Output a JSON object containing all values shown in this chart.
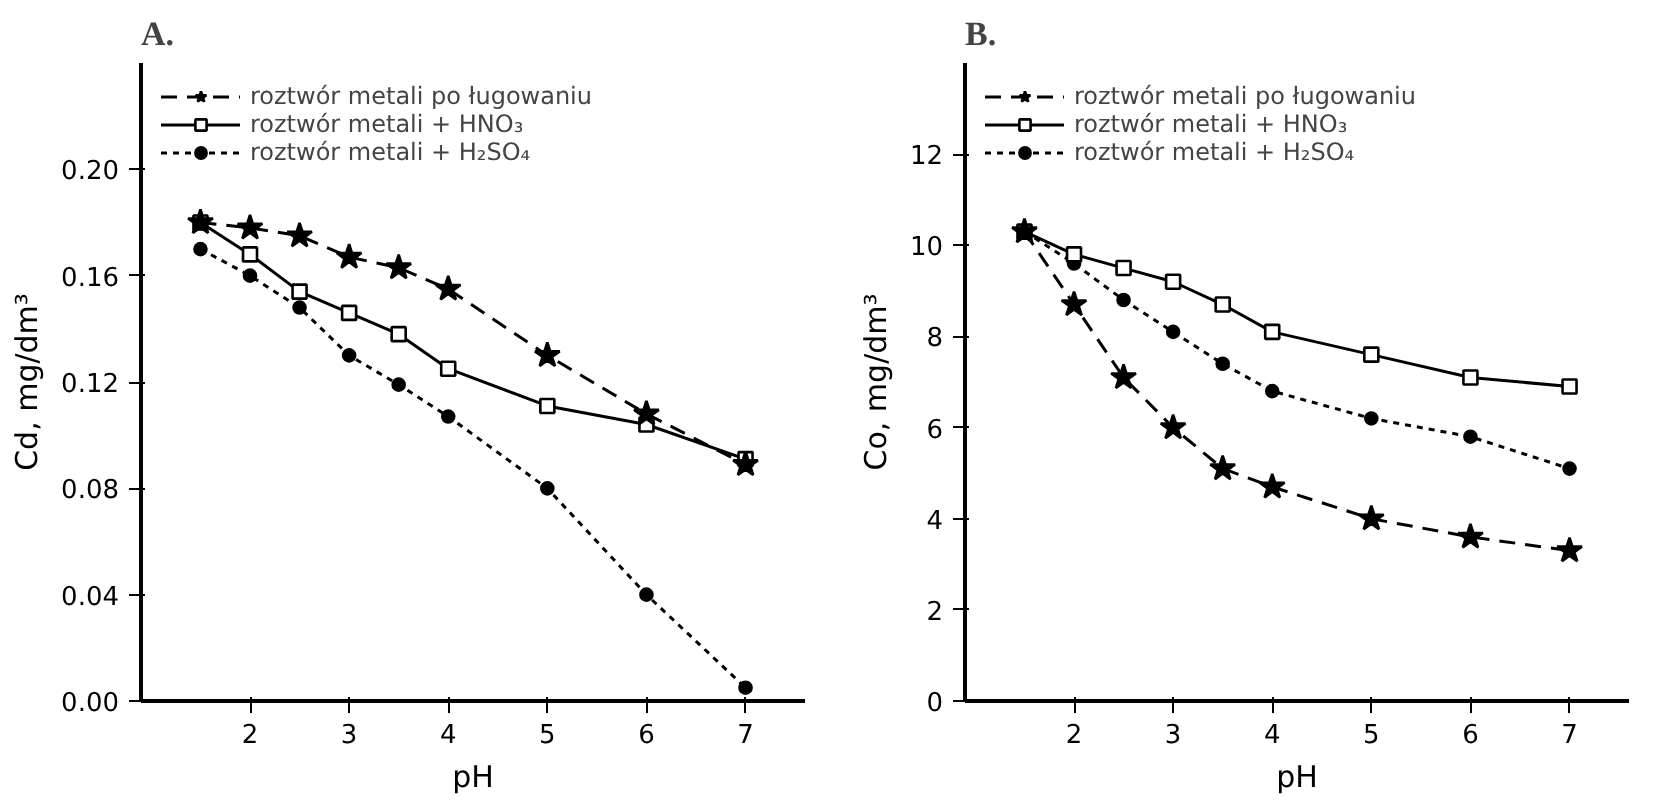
{
  "chart_data": [
    {
      "type": "line",
      "title": "A.",
      "xlabel": "pH",
      "ylabel": "Cd, mg/dm³",
      "x": [
        1.5,
        2,
        2.5,
        3,
        3.5,
        4,
        5,
        6,
        7
      ],
      "series": [
        {
          "name": "roztwór metali po ługowaniu",
          "color": "#000000",
          "marker": "star",
          "line_style": "dashed",
          "values": [
            0.18,
            0.178,
            0.175,
            0.167,
            0.163,
            0.155,
            0.13,
            0.108,
            0.089
          ]
        },
        {
          "name": "roztwór metali + HNO₃",
          "color": "#000000",
          "marker": "square",
          "line_style": "solid",
          "values": [
            0.18,
            0.168,
            0.154,
            0.146,
            0.138,
            0.125,
            0.111,
            0.104,
            0.091
          ]
        },
        {
          "name": "roztwór metali + H₂SO₄",
          "color": "#000000",
          "marker": "circle",
          "line_style": "dotted",
          "values": [
            0.17,
            0.16,
            0.148,
            0.13,
            0.119,
            0.107,
            0.08,
            0.04,
            0.005
          ]
        }
      ],
      "xlim": [
        0.9,
        7.6
      ],
      "xticks": [
        2,
        3,
        4,
        5,
        6,
        7
      ],
      "ylim": [
        0,
        0.24
      ],
      "yticks": [
        {
          "value": 0,
          "label": "0.00"
        },
        {
          "value": 0.04,
          "label": "0.04"
        },
        {
          "value": 0.08,
          "label": "0.08"
        },
        {
          "value": 0.12,
          "label": "0.12"
        },
        {
          "value": 0.16,
          "label": "0.16"
        },
        {
          "value": 0.2,
          "label": "0.20"
        }
      ],
      "grid": false,
      "legend": "top left"
    },
    {
      "type": "line",
      "title": "B.",
      "xlabel": "pH",
      "ylabel": "Co, mg/dm³",
      "x": [
        1.5,
        2,
        2.5,
        3,
        3.5,
        4,
        5,
        6,
        7
      ],
      "series": [
        {
          "name": "roztwór metali po ługowaniu",
          "color": "#000000",
          "marker": "star",
          "line_style": "dashed",
          "values": [
            10.3,
            8.7,
            7.1,
            6.0,
            5.1,
            4.7,
            4.0,
            3.6,
            3.3
          ]
        },
        {
          "name": "roztwór metali + HNO₃",
          "color": "#000000",
          "marker": "square",
          "line_style": "solid",
          "values": [
            10.3,
            9.8,
            9.5,
            9.2,
            8.7,
            8.1,
            7.6,
            7.1,
            6.9
          ]
        },
        {
          "name": "roztwór metali + H₂SO₄",
          "color": "#000000",
          "marker": "circle",
          "line_style": "dotted",
          "values": [
            10.3,
            9.6,
            8.8,
            8.1,
            7.4,
            6.8,
            6.2,
            5.8,
            5.1
          ]
        }
      ],
      "xlim": [
        0.9,
        7.6
      ],
      "xticks": [
        2,
        3,
        4,
        5,
        6,
        7
      ],
      "ylim": [
        0,
        14
      ],
      "yticks": [
        0,
        2,
        4,
        6,
        8,
        10,
        12
      ],
      "grid": false,
      "legend": "top left"
    }
  ]
}
